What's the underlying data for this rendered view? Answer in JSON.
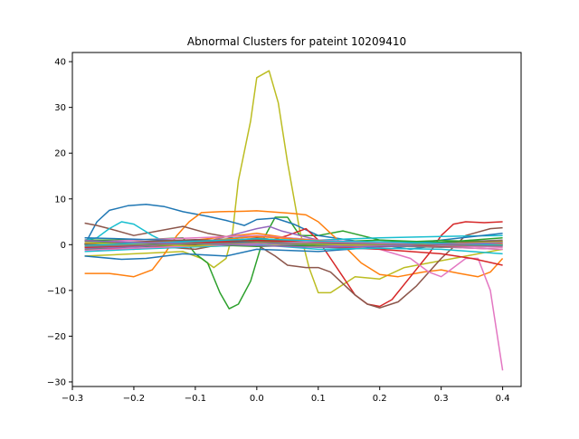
{
  "chart_data": {
    "type": "line",
    "title": "Abnormal Clusters for pateint 10209410",
    "xlabel": "",
    "ylabel": "",
    "xlim": [
      -0.3,
      0.43
    ],
    "ylim": [
      -31,
      42
    ],
    "x_ticks": [
      -0.3,
      -0.2,
      -0.1,
      0.0,
      0.1,
      0.2,
      0.3,
      0.4
    ],
    "x_tick_labels": [
      "−0.3",
      "−0.2",
      "−0.1",
      "0.0",
      "0.1",
      "0.2",
      "0.3",
      "0.4"
    ],
    "y_ticks": [
      -30,
      -20,
      -10,
      0,
      10,
      20,
      30,
      40
    ],
    "y_tick_labels": [
      "−30",
      "−20",
      "−10",
      "0",
      "10",
      "20",
      "30",
      "40"
    ],
    "grid": false,
    "legend": "none",
    "series": [
      {
        "color": "#bcbd22",
        "x": [
          -0.28,
          -0.2,
          -0.12,
          -0.09,
          -0.07,
          -0.05,
          -0.04,
          -0.03,
          -0.01,
          0.0,
          0.02,
          0.035,
          0.05,
          0.07,
          0.085,
          0.1,
          0.12,
          0.16,
          0.2,
          0.24,
          0.28,
          0.32,
          0.36,
          0.4
        ],
        "y": [
          -2.5,
          -2,
          -1.5,
          -3,
          -5,
          -3,
          2,
          14,
          27,
          36.5,
          38,
          31,
          18,
          3,
          -5,
          -10.5,
          -10.5,
          -7,
          -7.5,
          -5,
          -4,
          -3,
          -2,
          -1
        ]
      },
      {
        "color": "#2ca02c",
        "x": [
          -0.28,
          -0.2,
          -0.12,
          -0.1,
          -0.08,
          -0.06,
          -0.045,
          -0.03,
          -0.01,
          0.01,
          0.03,
          0.05,
          0.07,
          0.1,
          0.14,
          0.2,
          0.3,
          0.4
        ],
        "y": [
          1,
          1,
          1.5,
          -2,
          -4,
          -10.5,
          -14,
          -13,
          -8,
          1,
          6,
          6,
          2,
          2,
          3,
          1,
          0,
          0
        ]
      },
      {
        "color": "#1f77b4",
        "x": [
          -0.28,
          -0.26,
          -0.24,
          -0.21,
          -0.18,
          -0.15,
          -0.12,
          -0.08,
          -0.05,
          -0.02,
          0.0,
          0.03,
          0.06,
          0.1,
          0.15,
          0.2,
          0.25,
          0.3,
          0.35,
          0.4
        ],
        "y": [
          0,
          5,
          7.5,
          8.5,
          8.8,
          8.3,
          7.2,
          6.2,
          5.3,
          4.2,
          5.5,
          5.8,
          4.5,
          2,
          1,
          0,
          -1,
          0,
          1,
          0
        ]
      },
      {
        "color": "#ff7f0e",
        "x": [
          -0.28,
          -0.24,
          -0.2,
          -0.17,
          -0.15,
          -0.13,
          -0.11,
          -0.09,
          -0.06,
          -0.02,
          0.0,
          0.03,
          0.06,
          0.08,
          0.1,
          0.14,
          0.17,
          0.2,
          0.23,
          0.27,
          0.3,
          0.33,
          0.36,
          0.38,
          0.4
        ],
        "y": [
          -6.3,
          -6.3,
          -7,
          -5.5,
          -2,
          2,
          5,
          7,
          7.2,
          7.3,
          7.4,
          7.1,
          6.8,
          6.5,
          5,
          0,
          -4,
          -6.5,
          -7,
          -6,
          -5.5,
          -6.3,
          -7,
          -6,
          -3
        ]
      },
      {
        "color": "#d62728",
        "x": [
          -0.28,
          -0.2,
          -0.1,
          0.0,
          0.05,
          0.08,
          0.1,
          0.12,
          0.14,
          0.16,
          0.18,
          0.2,
          0.22,
          0.25,
          0.28,
          0.3,
          0.32,
          0.34,
          0.37,
          0.4
        ],
        "y": [
          0,
          0,
          0,
          0,
          2,
          3.5,
          1,
          -3,
          -7,
          -11,
          -13,
          -13.5,
          -12,
          -7,
          -2,
          2,
          4.5,
          5,
          4.8,
          5
        ]
      },
      {
        "color": "#8c564b",
        "x": [
          -0.28,
          -0.26,
          -0.24,
          -0.2,
          -0.16,
          -0.12,
          -0.08,
          -0.04,
          0.0,
          0.03,
          0.05,
          0.08,
          0.1,
          0.12,
          0.14,
          0.16,
          0.18,
          0.2,
          0.23,
          0.26,
          0.3,
          0.34,
          0.38,
          0.4
        ],
        "y": [
          4.7,
          4.2,
          3.5,
          2,
          3,
          4,
          2.5,
          1.5,
          0,
          -2.5,
          -4.5,
          -5,
          -5,
          -6,
          -8.5,
          -11,
          -13,
          -13.8,
          -12.5,
          -9,
          -3,
          2,
          3.5,
          3.7
        ]
      },
      {
        "color": "#e377c2",
        "x": [
          -0.28,
          -0.2,
          -0.1,
          0.0,
          0.1,
          0.2,
          0.25,
          0.28,
          0.3,
          0.32,
          0.34,
          0.36,
          0.38,
          0.4
        ],
        "y": [
          0.5,
          0.5,
          0,
          1.5,
          0,
          -1,
          -3,
          -6,
          -7,
          -5,
          -3,
          -3,
          -10,
          -27.5
        ]
      },
      {
        "color": "#17becf",
        "x": [
          -0.28,
          -0.26,
          -0.24,
          -0.22,
          -0.2,
          -0.17,
          -0.14,
          -0.1,
          0.0,
          0.1,
          0.2,
          0.3,
          0.4
        ],
        "y": [
          1,
          1.5,
          3.5,
          5,
          4.5,
          2,
          0,
          0.5,
          2,
          1,
          1.5,
          1.8,
          2
        ]
      },
      {
        "color": "#9467bd",
        "x": [
          -0.28,
          -0.2,
          -0.1,
          0.0,
          0.02,
          0.04,
          0.1,
          0.2,
          0.3,
          0.4
        ],
        "y": [
          -0.5,
          -0.5,
          0,
          3.5,
          4,
          3,
          1,
          0,
          0,
          0.5
        ]
      },
      {
        "color": "#7f7f7f",
        "x": [
          -0.28,
          -0.2,
          -0.1,
          0.0,
          0.1,
          0.2,
          0.3,
          0.4
        ],
        "y": [
          0.5,
          0.3,
          0.8,
          1.2,
          0.6,
          0.3,
          0.5,
          1
        ]
      },
      {
        "color": "#2ca02c",
        "x": [
          -0.28,
          -0.2,
          -0.1,
          0.0,
          0.1,
          0.2,
          0.3,
          0.4
        ],
        "y": [
          -1,
          -0.5,
          0,
          1,
          0.5,
          1,
          0.5,
          1.5
        ]
      },
      {
        "color": "#1f77b4",
        "x": [
          -0.28,
          -0.22,
          -0.18,
          -0.12,
          -0.05,
          0.0,
          0.1,
          0.2,
          0.3,
          0.4
        ],
        "y": [
          -2.5,
          -3.2,
          -3,
          -2,
          -2.5,
          -1,
          -1.5,
          -0.5,
          1,
          2.5
        ]
      },
      {
        "color": "#ff7f0e",
        "x": [
          -0.28,
          -0.2,
          -0.1,
          0.0,
          0.05,
          0.1,
          0.2,
          0.3,
          0.4
        ],
        "y": [
          0,
          0.5,
          1,
          2.5,
          1.5,
          0.5,
          0,
          0,
          0.5
        ]
      },
      {
        "color": "#d62728",
        "x": [
          -0.28,
          -0.2,
          -0.1,
          0.0,
          0.1,
          0.2,
          0.3,
          0.35,
          0.4
        ],
        "y": [
          -0.5,
          -1,
          0,
          1,
          -0.5,
          -1,
          -2,
          -3,
          -4.5
        ]
      },
      {
        "color": "#8c564b",
        "x": [
          -0.28,
          -0.2,
          -0.1,
          0.0,
          0.1,
          0.2,
          0.3,
          0.4
        ],
        "y": [
          1,
          0,
          -1,
          1.5,
          0,
          0.5,
          -0.5,
          -1
        ]
      },
      {
        "color": "#bcbd22",
        "x": [
          -0.28,
          -0.2,
          -0.1,
          0.0,
          0.1,
          0.2,
          0.3,
          0.4
        ],
        "y": [
          0,
          0.5,
          -0.5,
          0,
          -0.5,
          0,
          -0.5,
          0
        ]
      },
      {
        "color": "#17becf",
        "x": [
          -0.28,
          -0.2,
          -0.1,
          0.0,
          0.1,
          0.2,
          0.3,
          0.4
        ],
        "y": [
          -1.5,
          -1,
          -0.5,
          0,
          -1,
          -0.8,
          -1,
          -2
        ]
      },
      {
        "color": "#e377c2",
        "x": [
          -0.28,
          -0.2,
          -0.1,
          0.0,
          0.1,
          0.2,
          0.3,
          0.4
        ],
        "y": [
          0.5,
          1,
          1.5,
          2,
          1,
          0.5,
          -0.5,
          -1
        ]
      },
      {
        "color": "#9467bd",
        "x": [
          -0.28,
          -0.2,
          -0.1,
          0.0,
          0.1,
          0.2,
          0.3,
          0.4
        ],
        "y": [
          -0.8,
          -0.5,
          0.5,
          0.3,
          -0.2,
          -0.5,
          0,
          0.3
        ]
      },
      {
        "color": "#7f7f7f",
        "x": [
          -0.28,
          -0.2,
          -0.1,
          0.0,
          0.1,
          0.2,
          0.3,
          0.4
        ],
        "y": [
          0.2,
          -0.2,
          0.3,
          0.8,
          0.2,
          -0.3,
          -0.6,
          -0.2
        ]
      },
      {
        "color": "#1f77b4",
        "x": [
          -0.28,
          -0.2,
          -0.1,
          0.0,
          0.1,
          0.2,
          0.3,
          0.4
        ],
        "y": [
          1.5,
          1.2,
          0.8,
          0.5,
          0.3,
          0.2,
          0.1,
          -0.2
        ]
      },
      {
        "color": "#ff7f0e",
        "x": [
          -0.28,
          -0.2,
          -0.1,
          0.0,
          0.1,
          0.2,
          0.3,
          0.4
        ],
        "y": [
          -0.3,
          0.2,
          0.6,
          1.8,
          0.9,
          0.2,
          -0.2,
          0.1
        ]
      },
      {
        "color": "#2ca02c",
        "x": [
          -0.28,
          -0.2,
          -0.1,
          0.0,
          0.1,
          0.2,
          0.3,
          0.4
        ],
        "y": [
          0.8,
          0.4,
          0.1,
          -0.4,
          -0.1,
          0.4,
          0.9,
          0.6
        ]
      },
      {
        "color": "#d62728",
        "x": [
          -0.28,
          -0.2,
          -0.1,
          0.0,
          0.1,
          0.2,
          0.3,
          0.4
        ],
        "y": [
          -0.6,
          -0.2,
          0.4,
          0.9,
          0.5,
          0.1,
          -0.3,
          -0.5
        ]
      },
      {
        "color": "#8c564b",
        "x": [
          -0.28,
          -0.2,
          -0.1,
          0.0,
          0.1,
          0.2,
          0.3,
          0.4
        ],
        "y": [
          0.1,
          0.6,
          1.1,
          0.7,
          0.2,
          -0.4,
          0.3,
          0.8
        ]
      },
      {
        "color": "#e377c2",
        "x": [
          -0.28,
          -0.2,
          -0.1,
          0.0,
          0.1,
          0.2,
          0.3,
          0.4
        ],
        "y": [
          -1.2,
          -0.8,
          -0.3,
          0.2,
          0.7,
          0.4,
          -0.2,
          -0.6
        ]
      },
      {
        "color": "#bcbd22",
        "x": [
          -0.28,
          -0.2,
          -0.1,
          0.0,
          0.1,
          0.2,
          0.3,
          0.4
        ],
        "y": [
          0.4,
          0.1,
          -0.3,
          0.5,
          0.1,
          -0.2,
          0.2,
          0.6
        ]
      },
      {
        "color": "#17becf",
        "x": [
          -0.28,
          -0.2,
          -0.1,
          0.0,
          0.1,
          0.2,
          0.3,
          0.4
        ],
        "y": [
          -0.2,
          0.3,
          0.7,
          1.3,
          0.8,
          0.6,
          0.3,
          -0.1
        ]
      },
      {
        "color": "#9467bd",
        "x": [
          -0.28,
          -0.2,
          -0.1,
          0.0,
          0.1,
          0.2,
          0.3,
          0.4
        ],
        "y": [
          0.9,
          0.5,
          0.2,
          -0.2,
          -0.6,
          -0.3,
          0.1,
          0.4
        ]
      },
      {
        "color": "#7f7f7f",
        "x": [
          -0.28,
          -0.2,
          -0.1,
          0.0,
          0.1,
          0.2,
          0.3,
          0.4
        ],
        "y": [
          -0.4,
          -0.1,
          0.2,
          0.4,
          0.3,
          0.1,
          -0.1,
          -0.3
        ]
      }
    ]
  }
}
